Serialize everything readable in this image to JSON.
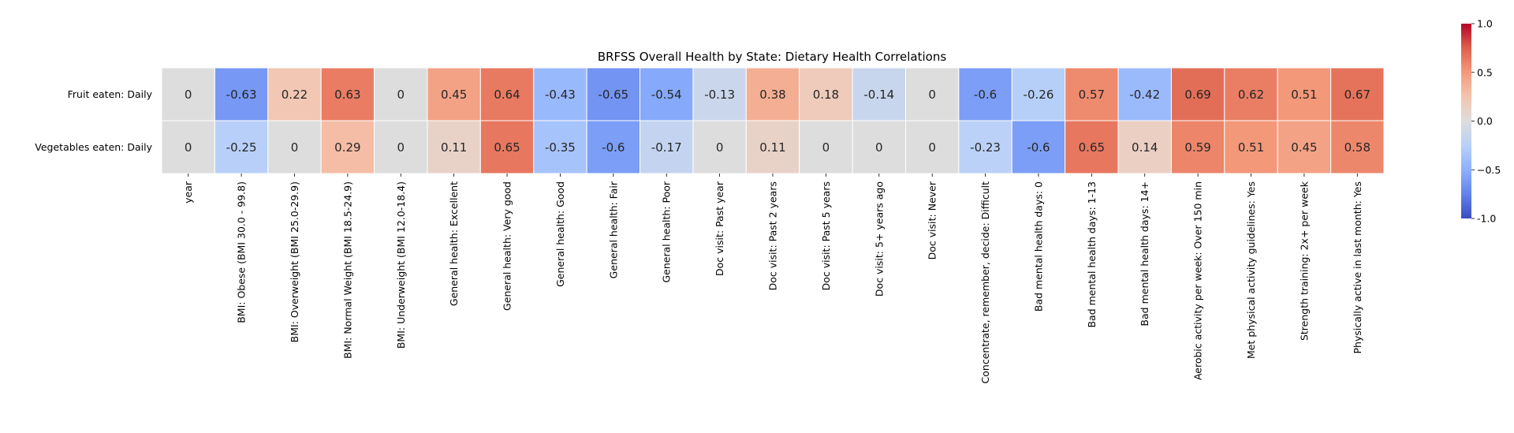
{
  "chart_data": {
    "type": "heatmap",
    "title": "BRFSS Overall Health by State: Dietary Health Correlations",
    "rows": [
      "Fruit eaten: Daily",
      "Vegetables eaten: Daily"
    ],
    "columns": [
      "year",
      "BMI: Obese (BMI 30.0 - 99.8)",
      "BMI: Overweight (BMI 25.0-29.9)",
      "BMI: Normal Weight (BMI 18.5-24.9)",
      "BMI: Underweight (BMI 12.0-18.4)",
      "General health: Excellent",
      "General health: Very good",
      "General health: Good",
      "General health: Fair",
      "General health: Poor",
      "Doc visit: Past year",
      "Doc visit: Past 2 years",
      "Doc visit: Past 5 years",
      "Doc visit: 5+ years ago",
      "Doc visit: Never",
      "Concentrate, remember, decide: Difficult",
      "Bad mental health days: 0",
      "Bad mental health days: 1-13",
      "Bad mental health days: 14+",
      "Aerobic activity per week: Over 150 min",
      "Met physical activity guidelines: Yes",
      "Strength training: 2x+ per week",
      "Physically active in last month: Yes"
    ],
    "values": [
      [
        0,
        -0.63,
        0.22,
        0.63,
        0,
        0.45,
        0.64,
        -0.43,
        -0.65,
        -0.54,
        -0.13,
        0.38,
        0.18,
        -0.14,
        0,
        -0.6,
        -0.26,
        0.57,
        -0.42,
        0.69,
        0.62,
        0.51,
        0.67
      ],
      [
        0,
        -0.25,
        0,
        0.29,
        0,
        0.11,
        0.65,
        -0.35,
        -0.6,
        -0.17,
        0,
        0.11,
        0,
        0,
        0,
        -0.23,
        -0.6,
        0.65,
        0.14,
        0.59,
        0.51,
        0.45,
        0.58
      ]
    ],
    "colormap": "coolwarm",
    "vmin": -1.0,
    "vmax": 1.0,
    "colorbar_ticks": [
      "-1.0",
      "−0.5",
      "0.0",
      "0.5",
      "1.0"
    ],
    "colorbar_tick_values": [
      -1.0,
      -0.5,
      0.0,
      0.5,
      1.0
    ]
  }
}
